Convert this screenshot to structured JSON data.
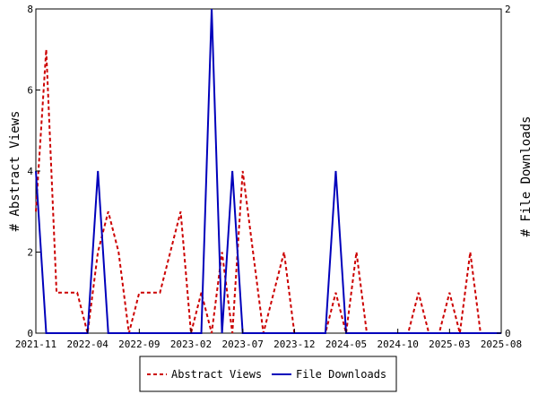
{
  "chart_data": {
    "type": "line",
    "x": [
      "2021-11-01",
      "2021-12-01",
      "2022-01-01",
      "2022-02-01",
      "2022-03-01",
      "2022-04-01",
      "2022-05-01",
      "2022-06-01",
      "2022-07-01",
      "2022-08-01",
      "2022-09-01",
      "2022-10-01",
      "2022-11-01",
      "2022-12-01",
      "2023-01-01",
      "2023-02-01",
      "2023-03-01",
      "2023-04-01",
      "2023-05-01",
      "2023-06-01",
      "2023-07-01",
      "2023-08-01",
      "2023-09-01",
      "2023-10-01",
      "2023-11-01",
      "2023-12-01",
      "2024-01-01",
      "2024-02-01",
      "2024-03-01",
      "2024-04-01",
      "2024-05-01",
      "2024-06-01",
      "2024-07-01",
      "2024-08-01",
      "2024-09-01",
      "2024-10-01",
      "2024-11-01",
      "2024-12-01",
      "2025-01-01",
      "2025-02-01",
      "2025-03-01",
      "2025-04-01",
      "2025-05-01",
      "2025-06-01",
      "2025-07-01",
      "2025-08-01"
    ],
    "x_ticks": [
      "2021-11",
      "2022-04",
      "2022-09",
      "2023-02",
      "2023-07",
      "2023-12",
      "2024-05",
      "2024-10",
      "2025-03",
      "2025-08"
    ],
    "series": [
      {
        "name": "Abstract Views",
        "axis": "left",
        "color": "#cc0000",
        "style": "dashed",
        "values": [
          3,
          7,
          1,
          1,
          1,
          0,
          2,
          3,
          2,
          0,
          1,
          1,
          1,
          2,
          3,
          0,
          1,
          0,
          2,
          0,
          4,
          2,
          0,
          1,
          2,
          0,
          0,
          0,
          0,
          1,
          0,
          2,
          0,
          0,
          0,
          0,
          0,
          1,
          0,
          0,
          1,
          0,
          2,
          0,
          0,
          0
        ]
      },
      {
        "name": "File Downloads",
        "axis": "right",
        "color": "#0000bb",
        "style": "solid",
        "values": [
          1,
          0,
          0,
          0,
          0,
          0,
          1,
          0,
          0,
          0,
          0,
          0,
          0,
          0,
          0,
          0,
          0,
          2,
          0,
          1,
          0,
          0,
          0,
          0,
          0,
          0,
          0,
          0,
          0,
          1,
          0,
          0,
          0,
          0,
          0,
          0,
          0,
          0,
          0,
          0,
          0,
          0,
          0,
          0,
          0,
          0
        ]
      }
    ],
    "y_left": {
      "label": "# Abstract Views",
      "lim": [
        0,
        8
      ],
      "ticks": [
        0,
        2,
        4,
        6,
        8
      ]
    },
    "y_right": {
      "label": "# File Downloads",
      "lim": [
        0,
        2
      ],
      "ticks": [
        0,
        2
      ]
    },
    "legend": {
      "placement": "bottom-center",
      "entries": [
        "Abstract Views",
        "File Downloads"
      ]
    },
    "grid": false
  }
}
